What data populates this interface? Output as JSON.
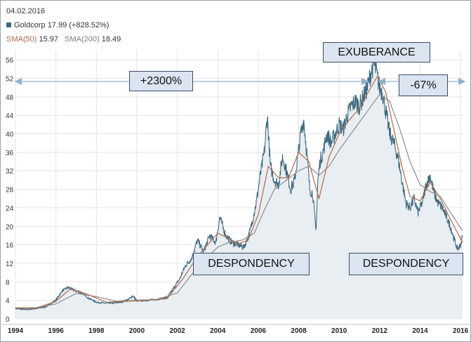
{
  "header": {
    "date": "04.02.2016",
    "ticker_label": "Goldcorp 17.99 (+828.52%)",
    "sma50_label": "SMA(50)",
    "sma50_value": "15.97",
    "sma200_label": "SMA(200)",
    "sma200_value": "18.49"
  },
  "annotations": {
    "gain": "+2300%",
    "exuberance": "EXUBERANCE",
    "loss": "-67%",
    "despondency_1": "DESPONDENCY",
    "despondency_2": "DESPONDENCY"
  },
  "colors": {
    "price_line": "#3e6a80",
    "area_fill": "#e9eef3",
    "sma50": "#b06a4a",
    "sma200": "#8c8c8c",
    "grid": "#e4e4e4",
    "arrow": "#8fb0d0"
  },
  "chart_data": {
    "type": "line",
    "title": "Goldcorp",
    "xlabel": "",
    "ylabel": "",
    "xlim": [
      1994,
      2016.1
    ],
    "ylim": [
      0,
      58
    ],
    "y_ticks": [
      0,
      4,
      8,
      12,
      16,
      20,
      24,
      28,
      32,
      36,
      40,
      44,
      48,
      52,
      56
    ],
    "x_tick_labels": [
      "1994",
      "1996",
      "1998",
      "2000",
      "2002",
      "2004",
      "2006",
      "2008",
      "2010",
      "2012",
      "2014",
      "2016"
    ],
    "series": [
      {
        "name": "Goldcorp",
        "x": [
          1994.0,
          1994.5,
          1995.0,
          1995.5,
          1996.0,
          1996.3,
          1996.6,
          1996.9,
          1997.3,
          1997.6,
          1998.0,
          1998.4,
          1998.8,
          1999.2,
          1999.6,
          1999.8,
          2000.0,
          2000.5,
          2001.0,
          2001.5,
          2001.8,
          2002.1,
          2002.4,
          2002.7,
          2003.0,
          2003.3,
          2003.6,
          2003.9,
          2004.1,
          2004.4,
          2004.7,
          2005.0,
          2005.3,
          2005.6,
          2005.9,
          2006.1,
          2006.3,
          2006.45,
          2006.6,
          2006.8,
          2007.0,
          2007.2,
          2007.4,
          2007.6,
          2007.8,
          2007.95,
          2008.1,
          2008.25,
          2008.4,
          2008.55,
          2008.7,
          2008.85,
          2008.95,
          2009.05,
          2009.2,
          2009.4,
          2009.6,
          2009.8,
          2010.0,
          2010.2,
          2010.4,
          2010.6,
          2010.8,
          2011.0,
          2011.2,
          2011.4,
          2011.55,
          2011.7,
          2011.8,
          2011.9,
          2012.0,
          2012.15,
          2012.3,
          2012.5,
          2012.7,
          2012.9,
          2013.1,
          2013.3,
          2013.5,
          2013.7,
          2013.9,
          2014.1,
          2014.3,
          2014.5,
          2014.7,
          2014.9,
          2015.1,
          2015.3,
          2015.5,
          2015.7,
          2015.85,
          2016.0,
          2016.1
        ],
        "values": [
          2.2,
          2.0,
          2.2,
          2.6,
          4.0,
          6.0,
          6.8,
          6.2,
          5.6,
          4.5,
          3.6,
          3.4,
          3.4,
          3.6,
          4.2,
          5.0,
          3.9,
          4.0,
          4.2,
          4.6,
          6.5,
          8.5,
          11.5,
          13.0,
          17.0,
          14.5,
          18.0,
          16.5,
          22.0,
          18.0,
          16.5,
          16.0,
          15.5,
          19.0,
          25.0,
          31.0,
          36.0,
          44.0,
          33.0,
          30.0,
          29.0,
          35.0,
          32.0,
          28.0,
          30.0,
          35.0,
          40.0,
          43.0,
          36.0,
          28.0,
          27.0,
          19.0,
          30.0,
          34.0,
          36.0,
          40.0,
          38.0,
          40.0,
          42.0,
          41.0,
          44.0,
          46.0,
          47.0,
          46.0,
          48.0,
          50.0,
          53.0,
          55.0,
          54.0,
          52.0,
          50.0,
          49.0,
          45.0,
          40.0,
          38.0,
          35.0,
          30.0,
          25.0,
          24.0,
          26.0,
          23.0,
          25.0,
          29.0,
          31.0,
          27.0,
          25.0,
          24.0,
          22.0,
          20.0,
          17.0,
          15.0,
          16.0,
          18.0
        ]
      },
      {
        "name": "SMA(50)",
        "x": [
          1994.0,
          1995.0,
          1996.0,
          1996.7,
          1997.5,
          1998.5,
          1999.5,
          2000.5,
          2001.5,
          2002.3,
          2003.0,
          2003.5,
          2004.0,
          2004.5,
          2005.0,
          2005.5,
          2006.0,
          2006.5,
          2007.0,
          2007.5,
          2008.0,
          2008.5,
          2009.0,
          2009.5,
          2010.0,
          2010.5,
          2011.0,
          2011.5,
          2011.9,
          2012.3,
          2012.7,
          2013.1,
          2013.5,
          2014.0,
          2014.5,
          2015.0,
          2015.5,
          2016.1
        ],
        "values": [
          2.3,
          2.3,
          3.8,
          6.4,
          5.4,
          3.6,
          3.8,
          4.0,
          4.4,
          8.8,
          13.5,
          16.0,
          18.5,
          17.5,
          16.2,
          17.0,
          22.5,
          33.0,
          30.5,
          30.5,
          36.0,
          34.0,
          26.0,
          35.0,
          40.0,
          43.0,
          45.5,
          49.5,
          52.5,
          49.0,
          41.0,
          33.0,
          26.5,
          25.5,
          29.5,
          26.0,
          21.5,
          16.5
        ]
      },
      {
        "name": "SMA(200)",
        "x": [
          1994.0,
          1995.0,
          1996.0,
          1997.0,
          1998.0,
          1999.0,
          2000.0,
          2001.0,
          2002.0,
          2002.7,
          2003.3,
          2004.0,
          2004.6,
          2005.2,
          2005.8,
          2006.3,
          2006.8,
          2007.4,
          2008.0,
          2008.5,
          2009.0,
          2009.5,
          2010.0,
          2010.5,
          2011.0,
          2011.5,
          2012.0,
          2012.5,
          2013.0,
          2013.5,
          2014.0,
          2014.5,
          2015.0,
          2015.5,
          2016.1
        ],
        "values": [
          2.4,
          2.4,
          3.2,
          5.5,
          4.8,
          3.8,
          4.0,
          4.2,
          5.6,
          9.5,
          12.5,
          15.5,
          16.6,
          17.0,
          18.5,
          23.5,
          28.0,
          30.0,
          32.0,
          33.0,
          31.0,
          33.0,
          36.5,
          39.5,
          42.5,
          45.5,
          48.5,
          47.0,
          41.0,
          34.0,
          29.0,
          27.5,
          26.5,
          23.0,
          19.0
        ]
      }
    ]
  }
}
